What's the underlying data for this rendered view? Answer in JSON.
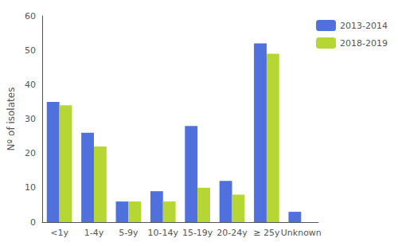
{
  "chart_data": {
    "type": "bar",
    "categories": [
      "<1y",
      "1-4y",
      "5-9y",
      "10-14y",
      "15-19y",
      "20-24y",
      "≥ 25y",
      "Unknown"
    ],
    "series": [
      {
        "name": "2013-2014",
        "values": [
          35,
          26,
          6,
          9,
          28,
          12,
          52,
          3
        ]
      },
      {
        "name": "2018-2019",
        "values": [
          34,
          22,
          6,
          6,
          10,
          8,
          49,
          0
        ]
      }
    ],
    "ylabel": "Nº of isolates",
    "ylim": [
      0,
      60
    ],
    "yticks": [
      0,
      10,
      20,
      30,
      40,
      50,
      60
    ],
    "grid": false,
    "legend": "right"
  }
}
